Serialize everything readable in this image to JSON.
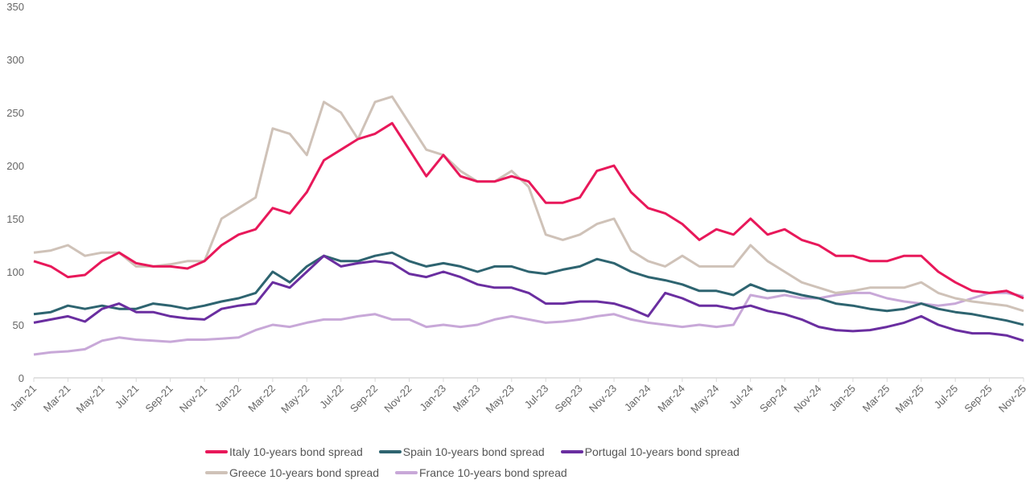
{
  "chart_data": {
    "type": "line",
    "title": "",
    "xlabel": "",
    "ylabel": "",
    "ylim": [
      0,
      350
    ],
    "yticks": [
      "0",
      "50",
      "100",
      "150",
      "200",
      "250",
      "300",
      "350"
    ],
    "grid": false,
    "legend_position": "bottom",
    "x": [
      "Jan-21",
      "Feb-21",
      "Mar-21",
      "Apr-21",
      "May-21",
      "Jun-21",
      "Jul-21",
      "Aug-21",
      "Sep-21",
      "Oct-21",
      "Nov-21",
      "Dec-21",
      "Jan-22",
      "Feb-22",
      "Mar-22",
      "Apr-22",
      "May-22",
      "Jun-22",
      "Jul-22",
      "Aug-22",
      "Sep-22",
      "Oct-22",
      "Nov-22",
      "Dec-22",
      "Jan-23",
      "Feb-23",
      "Mar-23",
      "Apr-23",
      "May-23",
      "Jun-23",
      "Jul-23",
      "Aug-23",
      "Sep-23",
      "Oct-23",
      "Nov-23",
      "Dec-23",
      "Jan-24",
      "Feb-24",
      "Mar-24",
      "Apr-24",
      "May-24",
      "Jun-24",
      "Jul-24",
      "Aug-24",
      "Sep-24",
      "Oct-24",
      "Nov-24",
      "Dec-24",
      "Jan-25",
      "Feb-25",
      "Mar-25",
      "Apr-25",
      "May-25",
      "Jun-25",
      "Jul-25",
      "Aug-25",
      "Sep-25",
      "Oct-25",
      "Nov-25"
    ],
    "xtick_labels": [
      "Jan-21",
      "Mar-21",
      "May-21",
      "Jul-21",
      "Sep-21",
      "Nov-21",
      "Jan-22",
      "Mar-22",
      "May-22",
      "Jul-22",
      "Sep-22",
      "Nov-22",
      "Jan-23",
      "Mar-23",
      "May-23",
      "Jul-23",
      "Sep-23",
      "Nov-23",
      "Jan-24",
      "Mar-24",
      "May-24",
      "Jul-24",
      "Sep-24",
      "Nov-24",
      "Jan-25",
      "Mar-25",
      "May-25",
      "Jul-25",
      "Sep-25",
      "Nov-25"
    ],
    "series": [
      {
        "name": "Italy 10-years bond spread",
        "color": "#e8185a",
        "values": [
          110,
          105,
          95,
          97,
          110,
          118,
          108,
          105,
          105,
          103,
          110,
          125,
          135,
          140,
          160,
          155,
          175,
          205,
          215,
          225,
          230,
          240,
          215,
          190,
          210,
          190,
          185,
          185,
          190,
          185,
          165,
          165,
          170,
          195,
          200,
          175,
          160,
          155,
          145,
          130,
          140,
          135,
          150,
          135,
          140,
          130,
          125,
          115,
          115,
          110,
          110,
          115,
          115,
          100,
          90,
          82,
          80,
          82,
          75
        ]
      },
      {
        "name": "Spain 10-years bond spread",
        "color": "#2e6470",
        "values": [
          60,
          62,
          68,
          65,
          68,
          65,
          65,
          70,
          68,
          65,
          68,
          72,
          75,
          80,
          100,
          90,
          105,
          115,
          110,
          110,
          115,
          118,
          110,
          105,
          108,
          105,
          100,
          105,
          105,
          100,
          98,
          102,
          105,
          112,
          108,
          100,
          95,
          92,
          88,
          82,
          82,
          78,
          88,
          82,
          82,
          78,
          75,
          70,
          68,
          65,
          63,
          65,
          70,
          65,
          62,
          60,
          57,
          54,
          50
        ]
      },
      {
        "name": "Portugal 10-years bond spread",
        "color": "#6a2ea0",
        "values": [
          52,
          55,
          58,
          53,
          65,
          70,
          62,
          62,
          58,
          56,
          55,
          65,
          68,
          70,
          90,
          85,
          100,
          115,
          105,
          108,
          110,
          108,
          98,
          95,
          100,
          95,
          88,
          85,
          85,
          80,
          70,
          70,
          72,
          72,
          70,
          65,
          58,
          80,
          75,
          68,
          68,
          65,
          68,
          63,
          60,
          55,
          48,
          45,
          44,
          45,
          48,
          52,
          58,
          50,
          45,
          42,
          42,
          40,
          35
        ]
      },
      {
        "name": "Greece 10-years bond spread",
        "color": "#cfc2b8",
        "values": [
          118,
          120,
          125,
          115,
          118,
          118,
          105,
          105,
          107,
          110,
          110,
          150,
          160,
          170,
          235,
          230,
          210,
          260,
          250,
          225,
          260,
          265,
          240,
          215,
          210,
          195,
          185,
          185,
          195,
          180,
          135,
          130,
          135,
          145,
          150,
          120,
          110,
          105,
          115,
          105,
          105,
          105,
          125,
          110,
          100,
          90,
          85,
          80,
          82,
          85,
          85,
          85,
          90,
          80,
          75,
          72,
          70,
          68,
          63
        ]
      },
      {
        "name": "France 10-years bond spread",
        "color": "#c8a8d8",
        "values": [
          22,
          24,
          25,
          27,
          35,
          38,
          36,
          35,
          34,
          36,
          36,
          37,
          38,
          45,
          50,
          48,
          52,
          55,
          55,
          58,
          60,
          55,
          55,
          48,
          50,
          48,
          50,
          55,
          58,
          55,
          52,
          53,
          55,
          58,
          60,
          55,
          52,
          50,
          48,
          50,
          48,
          50,
          78,
          75,
          78,
          75,
          75,
          78,
          80,
          80,
          75,
          72,
          70,
          68,
          70,
          75,
          80,
          80,
          77
        ]
      }
    ]
  }
}
